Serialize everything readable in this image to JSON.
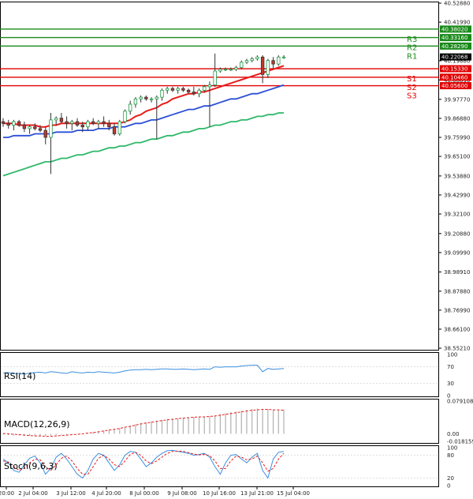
{
  "chart_data": [
    {
      "type": "candlestick",
      "panel": "price",
      "y_ticks": [
        40.5288,
        40.4199,
        40.1988,
        40.0889,
        39.9777,
        39.8688,
        39.7599,
        39.651,
        39.5388,
        39.4299,
        39.321,
        39.2088,
        39.0999,
        38.9891,
        38.8788,
        38.7699,
        38.661,
        38.5521
      ],
      "y_tick_labels": [
        "40.52880",
        "40.41990",
        "40.19880",
        "40.08890",
        "39.97770",
        "39.86880",
        "39.75990",
        "39.65100",
        "39.53880",
        "39.42990",
        "39.32100",
        "39.20880",
        "39.09990",
        "38.98910",
        "38.87880",
        "38.76990",
        "38.66100",
        "38.55210"
      ],
      "ylim": [
        38.5521,
        40.5288
      ],
      "x_tick_labels": [
        "20:00",
        "2 Jul 04:00",
        "3 Jul 12:00",
        "4 Jul 20:00",
        "8 Jul 00:00",
        "9 Jul 08:00",
        "10 Jul 16:00",
        "13 Jul 21:00",
        "15 Jul 04:00"
      ],
      "levels": [
        {
          "name": "R3",
          "value": 40.3802,
          "label": "40.38020",
          "color": "#1a8a1a"
        },
        {
          "name": "R2",
          "value": 40.3316,
          "label": "40.33160",
          "color": "#1a8a1a"
        },
        {
          "name": "R1",
          "value": 40.2829,
          "label": "40.28290",
          "color": "#1a8a1a"
        },
        {
          "name": "S1",
          "value": 40.1533,
          "label": "40.15330",
          "color": "#e00000"
        },
        {
          "name": "S2",
          "value": 40.1046,
          "label": "40.10460",
          "color": "#e00000"
        },
        {
          "name": "S3",
          "value": 40.056,
          "label": "40.05600",
          "color": "#e00000"
        }
      ],
      "current_price": {
        "value": 40.22068,
        "label": "40.22068"
      },
      "series_colors": {
        "ma_fast": "#e81c1c",
        "ma_mid": "#2c4fd6",
        "ma_slow": "#2eb86a",
        "bull": "#1f9b48",
        "bear": "#c0392b"
      },
      "candles": [
        [
          39.85,
          39.87,
          39.82,
          39.84
        ],
        [
          39.84,
          39.86,
          39.81,
          39.83
        ],
        [
          39.83,
          39.86,
          39.8,
          39.85
        ],
        [
          39.85,
          39.86,
          39.82,
          39.83
        ],
        [
          39.83,
          39.85,
          39.79,
          39.81
        ],
        [
          39.81,
          39.83,
          39.78,
          39.82
        ],
        [
          39.82,
          39.84,
          39.8,
          39.81
        ],
        [
          39.81,
          39.83,
          39.79,
          39.8
        ],
        [
          39.8,
          39.82,
          39.72,
          39.76
        ],
        [
          39.76,
          39.9,
          39.55,
          39.86
        ],
        [
          39.86,
          39.88,
          39.83,
          39.87
        ],
        [
          39.87,
          39.9,
          39.84,
          39.85
        ],
        [
          39.85,
          39.88,
          39.81,
          39.84
        ],
        [
          39.84,
          39.86,
          39.8,
          39.85
        ],
        [
          39.85,
          39.87,
          39.82,
          39.83
        ],
        [
          39.83,
          39.85,
          39.79,
          39.82
        ],
        [
          39.82,
          39.86,
          39.8,
          39.85
        ],
        [
          39.85,
          39.87,
          39.83,
          39.84
        ],
        [
          39.84,
          39.86,
          39.81,
          39.85
        ],
        [
          39.85,
          39.88,
          39.82,
          39.84
        ],
        [
          39.84,
          39.86,
          39.8,
          39.82
        ],
        [
          39.82,
          39.84,
          39.77,
          39.78
        ],
        [
          39.78,
          39.86,
          39.77,
          39.85
        ],
        [
          39.85,
          39.92,
          39.84,
          39.91
        ],
        [
          39.91,
          39.97,
          39.89,
          39.95
        ],
        [
          39.95,
          39.99,
          39.93,
          39.98
        ],
        [
          39.98,
          40.0,
          39.96,
          39.99
        ],
        [
          39.99,
          40.0,
          39.97,
          39.98
        ],
        [
          39.98,
          39.99,
          39.96,
          39.98
        ],
        [
          39.98,
          40.0,
          39.75,
          39.99
        ],
        [
          39.99,
          40.04,
          39.97,
          40.03
        ],
        [
          40.03,
          40.05,
          40.01,
          40.04
        ],
        [
          40.04,
          40.05,
          40.02,
          40.03
        ],
        [
          40.03,
          40.05,
          40.01,
          40.04
        ],
        [
          40.04,
          40.05,
          40.02,
          40.03
        ],
        [
          40.03,
          40.04,
          40.01,
          40.02
        ],
        [
          40.02,
          40.05,
          40.0,
          40.01
        ],
        [
          40.01,
          40.04,
          39.99,
          40.03
        ],
        [
          40.03,
          40.06,
          40.02,
          40.05
        ],
        [
          40.05,
          40.08,
          39.82,
          40.06
        ],
        [
          40.06,
          40.24,
          40.05,
          40.14
        ],
        [
          40.14,
          40.16,
          40.13,
          40.15
        ],
        [
          40.15,
          40.16,
          40.14,
          40.15
        ],
        [
          40.15,
          40.16,
          40.14,
          40.15
        ],
        [
          40.15,
          40.17,
          40.14,
          40.16
        ],
        [
          40.16,
          40.2,
          40.15,
          40.19
        ],
        [
          40.19,
          40.21,
          40.18,
          40.2
        ],
        [
          40.2,
          40.22,
          40.19,
          40.21
        ],
        [
          40.21,
          40.23,
          40.2,
          40.22
        ],
        [
          40.22,
          40.23,
          40.07,
          40.12
        ],
        [
          40.12,
          40.21,
          40.1,
          40.2
        ],
        [
          40.2,
          40.22,
          40.15,
          40.18
        ],
        [
          40.18,
          40.23,
          40.17,
          40.22
        ],
        [
          40.22,
          40.23,
          40.21,
          40.22
        ]
      ],
      "ma_fast": [
        39.84,
        39.84,
        39.84,
        39.83,
        39.83,
        39.83,
        39.83,
        39.82,
        39.82,
        39.83,
        39.83,
        39.84,
        39.84,
        39.84,
        39.84,
        39.84,
        39.84,
        39.84,
        39.84,
        39.84,
        39.84,
        39.84,
        39.84,
        39.85,
        39.86,
        39.88,
        39.89,
        39.91,
        39.92,
        39.93,
        39.95,
        39.96,
        39.98,
        39.99,
        40.0,
        40.01,
        40.01,
        40.02,
        40.02,
        40.03,
        40.04,
        40.05,
        40.06,
        40.07,
        40.08,
        40.09,
        40.1,
        40.11,
        40.12,
        40.13,
        40.14,
        40.15,
        40.16,
        40.17
      ],
      "ma_mid": [
        39.76,
        39.76,
        39.77,
        39.77,
        39.77,
        39.77,
        39.78,
        39.78,
        39.78,
        39.78,
        39.79,
        39.79,
        39.79,
        39.79,
        39.8,
        39.8,
        39.8,
        39.8,
        39.81,
        39.81,
        39.81,
        39.82,
        39.82,
        39.82,
        39.83,
        39.84,
        39.84,
        39.85,
        39.86,
        39.86,
        39.87,
        39.88,
        39.89,
        39.9,
        39.91,
        39.92,
        39.92,
        39.93,
        39.94,
        39.94,
        39.95,
        39.96,
        39.97,
        39.98,
        39.98,
        39.99,
        40.0,
        40.01,
        40.01,
        40.02,
        40.03,
        40.04,
        40.05,
        40.06
      ],
      "ma_slow": [
        39.54,
        39.55,
        39.56,
        39.57,
        39.58,
        39.59,
        39.6,
        39.61,
        39.62,
        39.62,
        39.63,
        39.64,
        39.64,
        39.65,
        39.66,
        39.66,
        39.67,
        39.68,
        39.68,
        39.69,
        39.7,
        39.7,
        39.71,
        39.71,
        39.72,
        39.73,
        39.73,
        39.74,
        39.75,
        39.75,
        39.76,
        39.77,
        39.77,
        39.78,
        39.79,
        39.79,
        39.8,
        39.81,
        39.81,
        39.82,
        39.83,
        39.83,
        39.84,
        39.85,
        39.85,
        39.86,
        39.86,
        39.87,
        39.88,
        39.88,
        39.89,
        39.89,
        39.9,
        39.9
      ]
    },
    {
      "type": "line",
      "panel": "rsi",
      "label": "RSI(14)",
      "ylim": [
        0,
        100
      ],
      "y_ticks": [
        100,
        70,
        30,
        0
      ],
      "y_tick_labels": [
        "100",
        "70",
        "30",
        "0"
      ],
      "color": "#3b8fe0",
      "values": [
        55,
        56,
        53,
        54,
        52,
        55,
        56,
        57,
        55,
        58,
        57,
        55,
        54,
        58,
        56,
        55,
        57,
        56,
        58,
        57,
        56,
        55,
        57,
        60,
        62,
        63,
        63,
        64,
        63,
        64,
        65,
        65,
        64,
        64,
        65,
        64,
        63,
        64,
        65,
        64,
        70,
        69,
        70,
        70,
        70,
        72,
        73,
        74,
        74,
        58,
        66,
        64,
        65,
        66
      ]
    },
    {
      "type": "bar+line",
      "panel": "macd",
      "label": "MACD(12,26,9)",
      "ylim": [
        -0.01816,
        0.079108
      ],
      "y_tick_labels": [
        "0.079108",
        "0.00",
        "-0.018159"
      ],
      "bar_color": "#b0b0b0",
      "signal_color": "#e81c1c",
      "histogram": [
        -0.002,
        -0.003,
        -0.004,
        -0.004,
        -0.005,
        -0.005,
        -0.006,
        -0.006,
        -0.005,
        -0.004,
        -0.003,
        -0.002,
        -0.002,
        -0.001,
        0.0,
        0.001,
        0.002,
        0.004,
        0.006,
        0.008,
        0.01,
        0.012,
        0.014,
        0.017,
        0.02,
        0.023,
        0.026,
        0.028,
        0.03,
        0.032,
        0.034,
        0.036,
        0.037,
        0.038,
        0.039,
        0.04,
        0.041,
        0.041,
        0.042,
        0.043,
        0.045,
        0.048,
        0.05,
        0.052,
        0.054,
        0.056,
        0.058,
        0.06,
        0.061,
        0.06,
        0.06,
        0.059,
        0.059,
        0.059
      ],
      "signal": [
        0.001,
        0.0,
        -0.001,
        -0.002,
        -0.003,
        -0.004,
        -0.005,
        -0.005,
        -0.006,
        -0.006,
        -0.005,
        -0.004,
        -0.003,
        -0.002,
        -0.001,
        0.0,
        0.002,
        0.003,
        0.005,
        0.007,
        0.009,
        0.011,
        0.013,
        0.016,
        0.018,
        0.021,
        0.024,
        0.026,
        0.028,
        0.03,
        0.032,
        0.034,
        0.035,
        0.037,
        0.038,
        0.039,
        0.04,
        0.041,
        0.041,
        0.042,
        0.043,
        0.045,
        0.047,
        0.049,
        0.051,
        0.053,
        0.055,
        0.057,
        0.058,
        0.059,
        0.059,
        0.058,
        0.058,
        0.057
      ]
    },
    {
      "type": "line",
      "panel": "stoch",
      "label": "Stoch(9,6,3)",
      "ylim": [
        0,
        100
      ],
      "y_tick_labels": [
        "100",
        "80",
        "20",
        "0"
      ],
      "k_color": "#3b8fe0",
      "d_color": "#e81c1c",
      "k": [
        70,
        60,
        40,
        35,
        55,
        72,
        78,
        60,
        30,
        45,
        75,
        85,
        70,
        50,
        30,
        20,
        40,
        70,
        85,
        80,
        60,
        40,
        55,
        80,
        90,
        88,
        70,
        50,
        60,
        75,
        85,
        92,
        93,
        90,
        88,
        85,
        80,
        82,
        85,
        75,
        50,
        30,
        60,
        80,
        82,
        70,
        60,
        75,
        85,
        40,
        20,
        70,
        88,
        90
      ],
      "d": [
        65,
        62,
        50,
        40,
        45,
        60,
        70,
        68,
        50,
        40,
        55,
        72,
        78,
        65,
        45,
        30,
        30,
        50,
        72,
        80,
        70,
        55,
        50,
        65,
        82,
        88,
        80,
        65,
        58,
        65,
        75,
        85,
        90,
        91,
        90,
        87,
        83,
        81,
        82,
        79,
        65,
        45,
        45,
        65,
        78,
        75,
        68,
        70,
        78,
        60,
        38,
        45,
        70,
        85
      ]
    }
  ]
}
